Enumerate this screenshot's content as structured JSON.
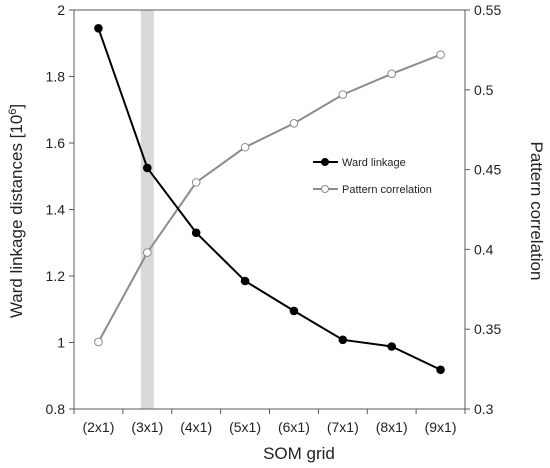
{
  "chart_data": {
    "type": "line",
    "categories": [
      "(2x1)",
      "(3x1)",
      "(4x1)",
      "(5x1)",
      "(6x1)",
      "(7x1)",
      "(8x1)",
      "(9x1)"
    ],
    "xlabel": "SOM grid",
    "ylabel": "Ward linkage distances [10",
    "ylabel_exponent": "6",
    "ylabel_suffix": "]",
    "y2label": "Pattern correlation",
    "ylim": [
      0.8,
      2.0
    ],
    "y2lim": [
      0.3,
      0.55
    ],
    "yticks": [
      "0.8",
      "1",
      "1.2",
      "1.4",
      "1.6",
      "1.8",
      "2"
    ],
    "y2ticks": [
      "0.3",
      "0.35",
      "0.4",
      "0.45",
      "0.5",
      "0.55"
    ],
    "highlight_category": "(3x1)",
    "highlight_color": "#d9d9d9",
    "legend_position": "center-right",
    "series": [
      {
        "name": "Ward linkage",
        "axis": "left",
        "color": "#000000",
        "marker": "filled-circle",
        "values": [
          1.945,
          1.525,
          1.33,
          1.185,
          1.095,
          1.008,
          0.988,
          0.918
        ]
      },
      {
        "name": "Pattern correlation",
        "axis": "right",
        "color": "#8c8c8c",
        "marker": "open-circle",
        "values": [
          0.342,
          0.398,
          0.442,
          0.464,
          0.479,
          0.497,
          0.51,
          0.522
        ]
      }
    ]
  }
}
